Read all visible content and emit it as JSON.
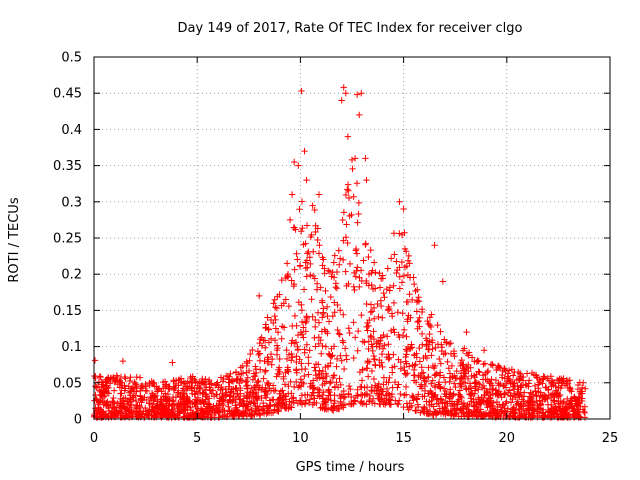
{
  "chart_data": {
    "type": "scatter",
    "title": "Day 149 of 2017, Rate Of TEC Index for receiver clgo",
    "xlabel": "GPS time / hours",
    "ylabel": "ROTI / TECUs",
    "xlim": [
      0,
      25
    ],
    "ylim": [
      0,
      0.5
    ],
    "xticks": [
      0,
      5,
      10,
      15,
      20,
      25
    ],
    "yticks": [
      0,
      0.05,
      0.1,
      0.15,
      0.2,
      0.25,
      0.3,
      0.35,
      0.4,
      0.45,
      0.5
    ],
    "grid": true,
    "marker": "+",
    "marker_color": "#ff0000",
    "series": [
      {
        "name": "ROTI",
        "envelope": [
          {
            "x": 0.0,
            "low": 0.002,
            "high": 0.06
          },
          {
            "x": 1.0,
            "low": 0.002,
            "high": 0.06
          },
          {
            "x": 2.0,
            "low": 0.002,
            "high": 0.06
          },
          {
            "x": 3.0,
            "low": 0.002,
            "high": 0.05
          },
          {
            "x": 4.0,
            "low": 0.002,
            "high": 0.055
          },
          {
            "x": 5.0,
            "low": 0.002,
            "high": 0.06
          },
          {
            "x": 6.0,
            "low": 0.002,
            "high": 0.055
          },
          {
            "x": 7.0,
            "low": 0.003,
            "high": 0.07
          },
          {
            "x": 8.0,
            "low": 0.005,
            "high": 0.11
          },
          {
            "x": 8.5,
            "low": 0.008,
            "high": 0.15
          },
          {
            "x": 9.0,
            "low": 0.01,
            "high": 0.18
          },
          {
            "x": 9.5,
            "low": 0.015,
            "high": 0.25
          },
          {
            "x": 10.0,
            "low": 0.02,
            "high": 0.3
          },
          {
            "x": 10.5,
            "low": 0.02,
            "high": 0.32
          },
          {
            "x": 11.0,
            "low": 0.015,
            "high": 0.25
          },
          {
            "x": 11.5,
            "low": 0.01,
            "high": 0.2
          },
          {
            "x": 12.0,
            "low": 0.015,
            "high": 0.3
          },
          {
            "x": 12.5,
            "low": 0.02,
            "high": 0.36
          },
          {
            "x": 13.0,
            "low": 0.02,
            "high": 0.3
          },
          {
            "x": 13.5,
            "low": 0.02,
            "high": 0.22
          },
          {
            "x": 14.0,
            "low": 0.02,
            "high": 0.2
          },
          {
            "x": 14.5,
            "low": 0.02,
            "high": 0.26
          },
          {
            "x": 15.0,
            "low": 0.015,
            "high": 0.27
          },
          {
            "x": 15.5,
            "low": 0.01,
            "high": 0.21
          },
          {
            "x": 16.0,
            "low": 0.008,
            "high": 0.16
          },
          {
            "x": 16.5,
            "low": 0.005,
            "high": 0.14
          },
          {
            "x": 17.0,
            "low": 0.005,
            "high": 0.11
          },
          {
            "x": 18.0,
            "low": 0.003,
            "high": 0.1
          },
          {
            "x": 19.0,
            "low": 0.003,
            "high": 0.08
          },
          {
            "x": 20.0,
            "low": 0.002,
            "high": 0.07
          },
          {
            "x": 21.0,
            "low": 0.002,
            "high": 0.065
          },
          {
            "x": 22.0,
            "low": 0.002,
            "high": 0.06
          },
          {
            "x": 23.0,
            "low": 0.002,
            "high": 0.055
          },
          {
            "x": 23.8,
            "low": 0.002,
            "high": 0.05
          }
        ],
        "outliers": [
          {
            "x": 0.05,
            "y": 0.081
          },
          {
            "x": 1.4,
            "y": 0.08
          },
          {
            "x": 3.8,
            "y": 0.078
          },
          {
            "x": 8.0,
            "y": 0.17
          },
          {
            "x": 9.5,
            "y": 0.275
          },
          {
            "x": 9.6,
            "y": 0.31
          },
          {
            "x": 9.7,
            "y": 0.355
          },
          {
            "x": 9.9,
            "y": 0.35
          },
          {
            "x": 10.05,
            "y": 0.453
          },
          {
            "x": 10.2,
            "y": 0.37
          },
          {
            "x": 10.3,
            "y": 0.33
          },
          {
            "x": 10.9,
            "y": 0.31
          },
          {
            "x": 12.0,
            "y": 0.44
          },
          {
            "x": 12.1,
            "y": 0.458
          },
          {
            "x": 12.2,
            "y": 0.45
          },
          {
            "x": 12.3,
            "y": 0.39
          },
          {
            "x": 12.65,
            "y": 0.36
          },
          {
            "x": 12.75,
            "y": 0.448
          },
          {
            "x": 12.85,
            "y": 0.42
          },
          {
            "x": 12.95,
            "y": 0.45
          },
          {
            "x": 13.15,
            "y": 0.36
          },
          {
            "x": 13.2,
            "y": 0.33
          },
          {
            "x": 14.8,
            "y": 0.3
          },
          {
            "x": 15.0,
            "y": 0.29
          },
          {
            "x": 16.5,
            "y": 0.24
          },
          {
            "x": 16.9,
            "y": 0.19
          },
          {
            "x": 18.05,
            "y": 0.12
          },
          {
            "x": 18.9,
            "y": 0.095
          },
          {
            "x": 23.7,
            "y": 0.05
          }
        ]
      }
    ]
  }
}
